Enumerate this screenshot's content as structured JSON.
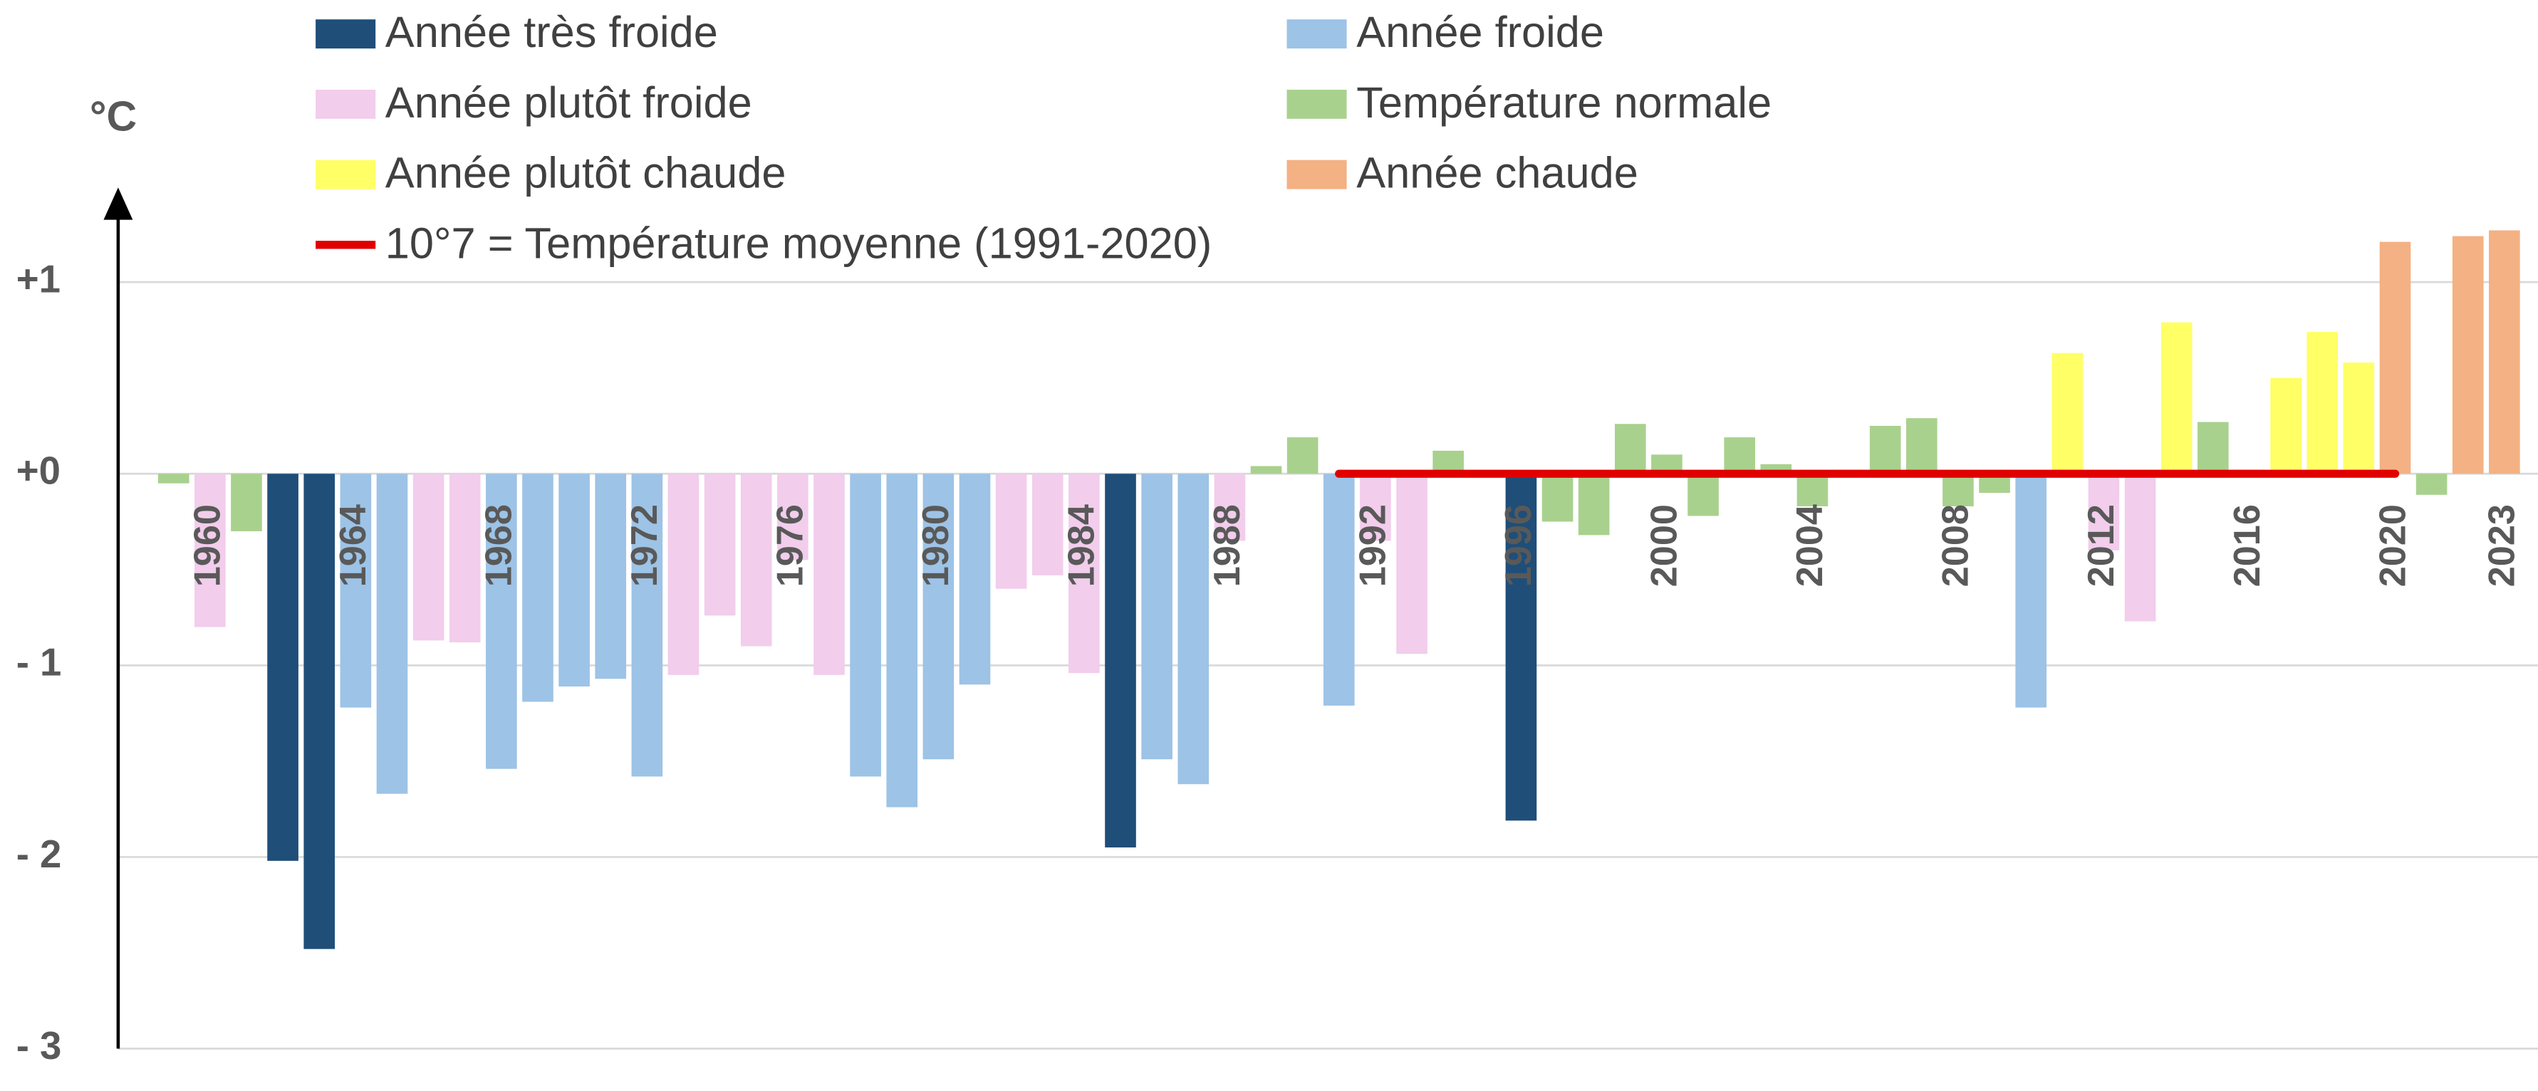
{
  "chart_data": {
    "type": "bar",
    "y_label": "°C",
    "categories": [
      null,
      "1960",
      null,
      null,
      null,
      "1964",
      null,
      null,
      null,
      "1968",
      null,
      null,
      null,
      "1972",
      null,
      null,
      null,
      "1976",
      null,
      null,
      null,
      "1980",
      null,
      null,
      null,
      "1984",
      null,
      null,
      null,
      "1988",
      null,
      null,
      null,
      "1992",
      null,
      null,
      null,
      "1996",
      null,
      null,
      null,
      "2000",
      null,
      null,
      null,
      "2004",
      null,
      null,
      null,
      "2008",
      null,
      null,
      null,
      "2012",
      null,
      null,
      null,
      "2016",
      null,
      null,
      null,
      "2020",
      null,
      null,
      "2023"
    ],
    "ylim": [
      -3,
      1.46
    ],
    "yticks": [
      {
        "value": 1,
        "label": "+1"
      },
      {
        "value": 0,
        "label": "+0"
      },
      {
        "value": -1,
        "label": "- 1"
      },
      {
        "value": -2,
        "label": "- 2"
      },
      {
        "value": -3,
        "label": "- 3"
      }
    ],
    "grid": true,
    "series": [
      {
        "name": "Année très froide",
        "color": "#1f4e79",
        "values": [
          null,
          null,
          null,
          -2.02,
          -2.48,
          null,
          null,
          null,
          null,
          null,
          null,
          null,
          null,
          null,
          null,
          null,
          null,
          null,
          null,
          null,
          null,
          null,
          null,
          null,
          null,
          null,
          -1.95,
          null,
          null,
          null,
          null,
          null,
          null,
          null,
          null,
          null,
          null,
          -1.81,
          null,
          null,
          null,
          null,
          null,
          null,
          null,
          null,
          null,
          null,
          null,
          null,
          null,
          null,
          null,
          null,
          null,
          null,
          null,
          null,
          null,
          null,
          null,
          null,
          null,
          null,
          null
        ]
      },
      {
        "name": "Année froide",
        "color": "#9dc3e6",
        "values": [
          null,
          null,
          null,
          null,
          null,
          -1.22,
          -1.67,
          null,
          null,
          -1.54,
          -1.19,
          -1.11,
          -1.07,
          -1.58,
          null,
          null,
          null,
          null,
          null,
          -1.58,
          -1.74,
          -1.49,
          -1.1,
          null,
          null,
          null,
          null,
          -1.49,
          -1.62,
          null,
          null,
          null,
          -1.21,
          null,
          null,
          null,
          null,
          null,
          null,
          null,
          null,
          null,
          null,
          null,
          null,
          null,
          null,
          null,
          null,
          null,
          null,
          -1.22,
          null,
          null,
          null,
          null,
          null,
          null,
          null,
          null,
          null,
          null,
          null,
          null,
          null
        ]
      },
      {
        "name": "Année plutôt froide",
        "color": "#f2cdec",
        "values": [
          null,
          -0.8,
          null,
          null,
          null,
          null,
          null,
          -0.87,
          -0.88,
          null,
          null,
          null,
          null,
          null,
          -1.05,
          -0.74,
          -0.9,
          -0.45,
          -1.05,
          null,
          null,
          null,
          null,
          -0.6,
          -0.53,
          -1.04,
          null,
          null,
          null,
          -0.35,
          null,
          null,
          null,
          -0.35,
          -0.94,
          null,
          null,
          null,
          null,
          null,
          null,
          null,
          null,
          null,
          null,
          null,
          null,
          null,
          null,
          null,
          null,
          null,
          null,
          -0.4,
          -0.77,
          null,
          null,
          null,
          null,
          null,
          null,
          null,
          null,
          null,
          null
        ]
      },
      {
        "name": "Température normale",
        "color": "#a9d18e",
        "values": [
          -0.05,
          null,
          -0.3,
          null,
          null,
          null,
          null,
          null,
          null,
          null,
          null,
          null,
          null,
          null,
          null,
          null,
          null,
          null,
          null,
          null,
          null,
          null,
          null,
          null,
          null,
          null,
          null,
          null,
          null,
          null,
          0.04,
          0.19,
          null,
          null,
          null,
          0.12,
          -0.02,
          null,
          -0.25,
          -0.32,
          0.26,
          0.1,
          -0.22,
          0.19,
          0.05,
          -0.17,
          0.02,
          0.25,
          0.29,
          -0.17,
          -0.1,
          null,
          null,
          null,
          null,
          null,
          0.27,
          0.02,
          null,
          null,
          null,
          null,
          -0.11,
          null,
          null
        ]
      },
      {
        "name": "Année plutôt chaude",
        "color": "#ffff66",
        "values": [
          null,
          null,
          null,
          null,
          null,
          null,
          null,
          null,
          null,
          null,
          null,
          null,
          null,
          null,
          null,
          null,
          null,
          null,
          null,
          null,
          null,
          null,
          null,
          null,
          null,
          null,
          null,
          null,
          null,
          null,
          null,
          null,
          null,
          null,
          null,
          null,
          null,
          null,
          null,
          null,
          null,
          null,
          null,
          null,
          null,
          null,
          null,
          null,
          null,
          null,
          null,
          null,
          0.63,
          null,
          null,
          0.79,
          null,
          null,
          0.5,
          0.74,
          0.58,
          null,
          null,
          null,
          null
        ]
      },
      {
        "name": "Année chaude",
        "color": "#f4b183",
        "values": [
          null,
          null,
          null,
          null,
          null,
          null,
          null,
          null,
          null,
          null,
          null,
          null,
          null,
          null,
          null,
          null,
          null,
          null,
          null,
          null,
          null,
          null,
          null,
          null,
          null,
          null,
          null,
          null,
          null,
          null,
          null,
          null,
          null,
          null,
          null,
          null,
          null,
          null,
          null,
          null,
          null,
          null,
          null,
          null,
          null,
          null,
          null,
          null,
          null,
          null,
          null,
          null,
          null,
          null,
          null,
          null,
          null,
          null,
          null,
          null,
          null,
          1.21,
          null,
          1.24,
          1.27
        ]
      },
      {
        "name": "10°7 = Température moyenne (1991-2020)",
        "color": "#e00000",
        "type": "line",
        "values": [
          null,
          null,
          null,
          null,
          null,
          null,
          null,
          null,
          null,
          null,
          null,
          null,
          null,
          null,
          null,
          null,
          null,
          null,
          null,
          null,
          null,
          null,
          null,
          null,
          null,
          null,
          null,
          null,
          null,
          null,
          null,
          null,
          0,
          0,
          0,
          0,
          0,
          0,
          0,
          0,
          0,
          0,
          0,
          0,
          0,
          0,
          0,
          0,
          0,
          0,
          0,
          0,
          0,
          0,
          0,
          0,
          0,
          0,
          0,
          0,
          0,
          0,
          null,
          null,
          null
        ]
      }
    ]
  }
}
